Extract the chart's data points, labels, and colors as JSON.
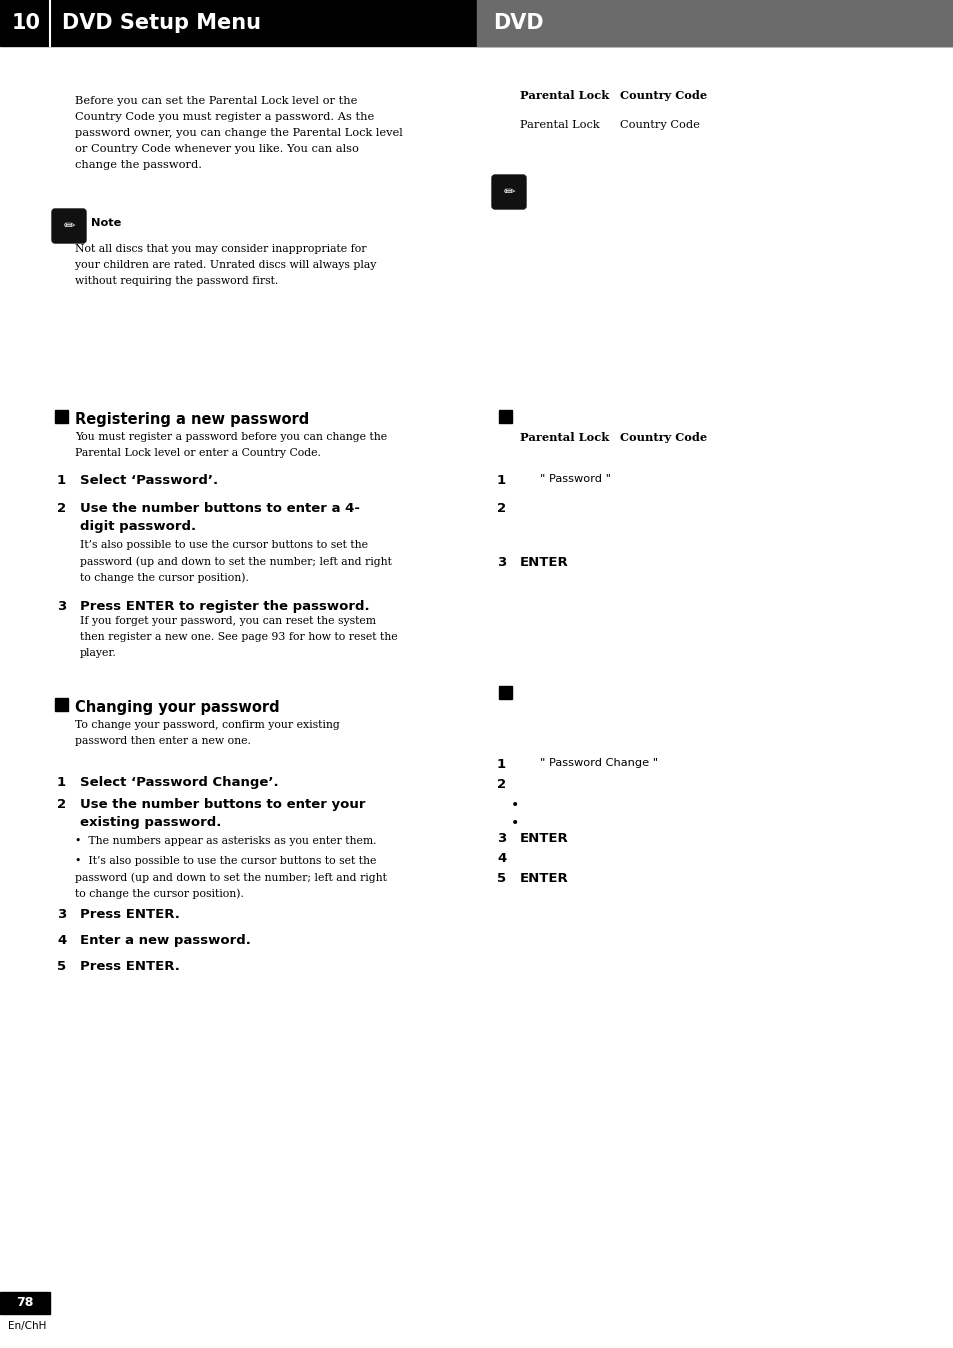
{
  "page_bg": "#ffffff",
  "header_left_bg": "#000000",
  "header_right_bg": "#6b6b6b",
  "header_number": "10",
  "header_title": "DVD Setup Menu",
  "header_tag": "DVD",
  "footer_number": "78",
  "footer_sub": "En/ChH",
  "intro_text_lines": [
    "Before you can set the Parental Lock level or the",
    "Country Code you must register a password. As the",
    "password owner, you can change the Parental Lock level",
    "or Country Code whenever you like. You can also",
    "change the password."
  ],
  "note_label": "Note",
  "note_text_lines": [
    "Not all discs that you may consider inappropriate for",
    "your children are rated. Unrated discs will always play",
    "without requiring the password first."
  ],
  "right_header1_a": "Parental Lock",
  "right_header1_b": "Country Code",
  "right_header2_a": "Parental Lock",
  "right_header2_b": "Country Code",
  "right_header3_a": "Parental Lock",
  "right_header3_b": "Country Code",
  "section1_title": "Registering a new password",
  "section1_desc_lines": [
    "You must register a password before you can change the",
    "Parental Lock level or enter a Country Code."
  ],
  "s1_step1_bold": "Select ‘Password’.",
  "s1_step2_bold": "Use the number buttons to enter a 4-",
  "s1_step2_bold2": "digit password.",
  "s1_step2_rest_lines": [
    "It’s also possible to use the cursor buttons to set the",
    "password (up and down to set the number; left and right",
    "to change the cursor position)."
  ],
  "s1_step3_bold": "Press ENTER to register the password.",
  "s1_step3_rest_lines": [
    "If you forget your password, you can reset the system",
    "then register a new one. See page 93 for how to reset the",
    "player."
  ],
  "right_s1_step1": "\" Password \"",
  "right_s1_step3": "ENTER",
  "section2_title": "Changing your password",
  "section2_desc_lines": [
    "To change your password, confirm your existing",
    "password then enter a new one."
  ],
  "s2_step1_bold": "Select ‘Password Change’.",
  "s2_step2_bold": "Use the number buttons to enter your",
  "s2_step2_bold2": "existing password.",
  "s2_step2_bullet1": "•  The numbers appear as asterisks as you enter them.",
  "s2_step2_bullet2_lines": [
    "•  It’s also possible to use the cursor buttons to set the",
    "password (up and down to set the number; left and right",
    "to change the cursor position)."
  ],
  "s2_step3_bold": "Press ENTER.",
  "s2_step4_bold": "Enter a new password.",
  "s2_step5_bold": "Press ENTER.",
  "right_s2_step1": "\" Password Change \"",
  "right_s2_step3": "ENTER",
  "right_s2_step5": "ENTER"
}
